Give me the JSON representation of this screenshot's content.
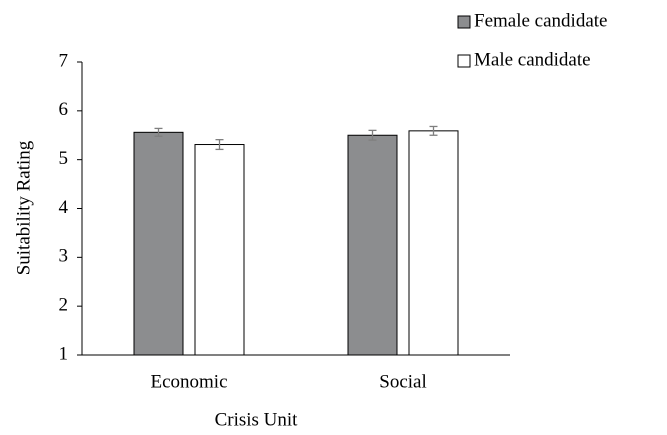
{
  "chart_data": {
    "type": "bar",
    "categories": [
      "Economic",
      "Social"
    ],
    "series": [
      {
        "name": "Female candidate",
        "color": "#8c8d8f",
        "values": [
          5.56,
          5.5
        ],
        "errors": [
          0.08,
          0.1
        ]
      },
      {
        "name": "Male candidate",
        "color": "#ffffff",
        "values": [
          5.31,
          5.59
        ],
        "errors": [
          0.1,
          0.09
        ]
      }
    ],
    "x_label": "Crisis Unit",
    "y_label": "Suitability Rating",
    "ylim": [
      1,
      7
    ],
    "yticks": [
      1,
      2,
      3,
      4,
      5,
      6,
      7
    ],
    "grid": false,
    "legend": "top-right"
  }
}
